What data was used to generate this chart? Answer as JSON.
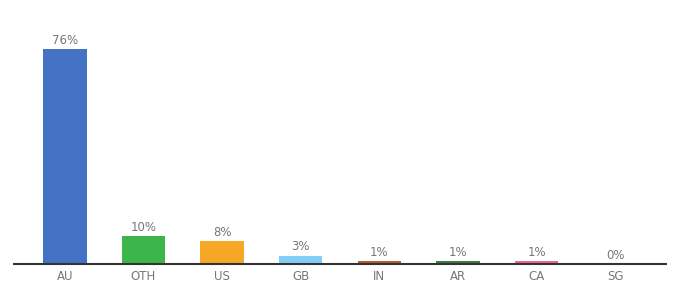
{
  "categories": [
    "AU",
    "OTH",
    "US",
    "GB",
    "IN",
    "AR",
    "CA",
    "SG"
  ],
  "values": [
    76,
    10,
    8,
    3,
    1,
    1,
    1,
    0
  ],
  "labels": [
    "76%",
    "10%",
    "8%",
    "3%",
    "1%",
    "1%",
    "1%",
    "0%"
  ],
  "bar_colors": [
    "#4472C4",
    "#3CB54A",
    "#F7A726",
    "#82CEFA",
    "#B85C2A",
    "#3A7D44",
    "#F06292",
    "#C0C0C0"
  ],
  "background_color": "#FFFFFF",
  "ylim": [
    0,
    85
  ],
  "label_fontsize": 8.5,
  "tick_fontsize": 8.5,
  "label_color": "#777777",
  "tick_color": "#777777",
  "bar_width": 0.55
}
